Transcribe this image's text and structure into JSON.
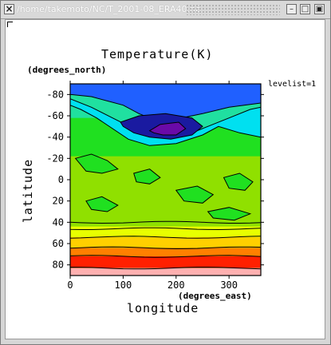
{
  "window": {
    "title": "/home/takemoto/NC/T_2001-08_ERA40.nc",
    "close_glyph": "×",
    "minimize_glyph": "–",
    "maximize_glyph": "□",
    "restore_glyph": "▣"
  },
  "plot": {
    "title": "Temperature(K)",
    "y_unit": "(degrees_north)",
    "x_unit": "(degrees_east)",
    "xlabel": "longitude",
    "ylabel": "latitude",
    "levellist_text": "levelist=1"
  },
  "chart_data": {
    "type": "heatmap",
    "title": "Temperature(K)",
    "xlabel": "longitude",
    "ylabel": "latitude",
    "x_unit": "(degrees_east)",
    "y_unit": "(degrees_north)",
    "xlim": [
      0,
      360
    ],
    "ylim": [
      -90,
      90
    ],
    "y_axis_inverted": true,
    "xticks": [
      0,
      100,
      200,
      300
    ],
    "yticks": [
      -80,
      -60,
      -40,
      -20,
      0,
      20,
      40,
      60,
      80
    ],
    "level_colors": [
      "#6a0aa8",
      "#1a1aa0",
      "#2060ff",
      "#00e0f0",
      "#20e0a0",
      "#20e020",
      "#90e000",
      "#e8ff00",
      "#ffd000",
      "#ff8000",
      "#ff2000",
      "#ffb0b0"
    ],
    "regions": [
      {
        "name": "polar-south",
        "lat_range": [
          -90,
          -78
        ],
        "color": "#2060ff"
      },
      {
        "name": "cold-core",
        "center": [
          175,
          -48
        ],
        "color": "#6a0aa8"
      },
      {
        "name": "tropics",
        "lat_range": [
          -20,
          40
        ],
        "color": "#90e000"
      },
      {
        "name": "band-45",
        "lat_range": [
          44,
          54
        ],
        "color": "#e8ff00"
      },
      {
        "name": "band-60",
        "lat_range": [
          54,
          64
        ],
        "color": "#ffd000"
      },
      {
        "name": "band-70",
        "lat_range": [
          64,
          72
        ],
        "color": "#ff8000"
      },
      {
        "name": "band-78",
        "lat_range": [
          72,
          83
        ],
        "color": "#ff2000"
      },
      {
        "name": "band-85",
        "lat_range": [
          83,
          90
        ],
        "color": "#ffb0b0"
      }
    ]
  }
}
